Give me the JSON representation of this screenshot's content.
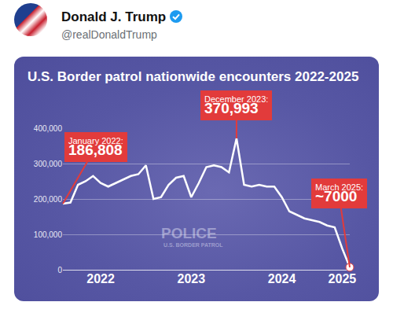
{
  "post": {
    "name": "Donald J. Trump",
    "handle": "@realDonaldTrump"
  },
  "photo_text": [
    "POLICE",
    "U.S. BORDER PATROL"
  ],
  "chart_data": {
    "type": "line",
    "title": "U.S. Border patrol nationwide encounters 2022-2025",
    "categories": [
      null,
      null,
      null,
      null,
      null,
      "2022",
      null,
      null,
      null,
      null,
      null,
      null,
      null,
      null,
      null,
      null,
      null,
      "2023",
      null,
      null,
      null,
      null,
      null,
      null,
      null,
      null,
      null,
      null,
      null,
      "2024",
      null,
      null,
      null,
      null,
      null,
      null,
      null,
      "2025",
      null
    ],
    "values": [
      186808,
      190000,
      240000,
      250000,
      265000,
      245000,
      235000,
      245000,
      255000,
      265000,
      270000,
      295000,
      200000,
      205000,
      240000,
      260000,
      265000,
      205000,
      245000,
      290000,
      295000,
      290000,
      275000,
      370993,
      240000,
      235000,
      240000,
      235000,
      235000,
      205000,
      165000,
      155000,
      145000,
      140000,
      135000,
      125000,
      120000,
      60000,
      7000
    ],
    "color": "#ffffff",
    "ylim": [
      0,
      400000
    ],
    "yticks": [
      0,
      {
        "value": 100000,
        "label": "100,000"
      },
      {
        "value": 200000,
        "label": "200,000"
      },
      {
        "value": 300000,
        "label": "300,000"
      },
      {
        "value": 400000,
        "label": "400,000"
      }
    ],
    "grid": true,
    "annotations": [
      {
        "text": "January 2022:",
        "value_label": "186,808",
        "point": 0
      },
      {
        "text": "December 2023:",
        "value_label": "370,993",
        "point": 23
      },
      {
        "text": "March 2025:",
        "value_label": "~7000",
        "point": 38,
        "marker": "circle"
      }
    ]
  }
}
